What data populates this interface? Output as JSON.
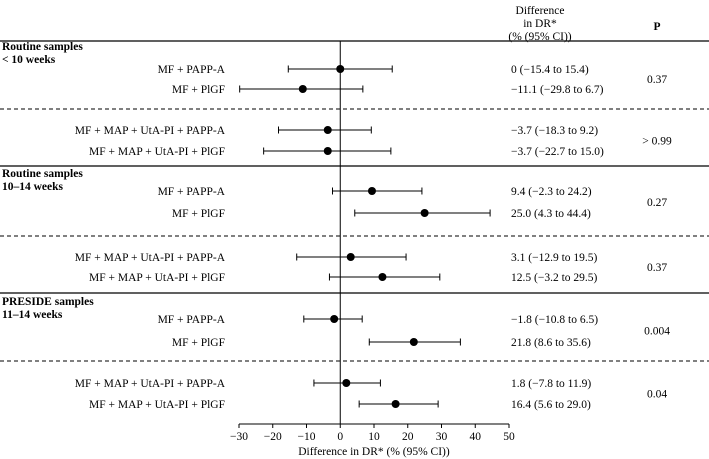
{
  "chart_data": {
    "type": "forest",
    "header": {
      "ci_column": [
        "Difference",
        "in DR*",
        "(% (95% CI))"
      ],
      "p_column": "P"
    },
    "xlabel": "Difference in DR* (% (95% CI))",
    "xlim": [
      -30,
      50
    ],
    "xticks": [
      "−30",
      "−20",
      "−10",
      "0",
      "10",
      "20",
      "30",
      "40",
      "50"
    ],
    "xtick_values": [
      -30,
      -20,
      -10,
      0,
      10,
      20,
      30,
      40,
      50
    ],
    "groups": [
      {
        "label_lines": [
          "Routine samples",
          "< 10 weeks"
        ],
        "blocks": [
          {
            "p": "0.37",
            "rows": [
              {
                "label": "MF + PAPP-A",
                "estimate": 0.0,
                "lo": -15.4,
                "hi": 15.4,
                "ci_text": "0 (−15.4 to 15.4)"
              },
              {
                "label": "MF + PlGF",
                "estimate": -11.1,
                "lo": -29.8,
                "hi": 6.7,
                "ci_text": "−11.1 (−29.8 to 6.7)"
              }
            ]
          },
          {
            "p": "> 0.99",
            "rows": [
              {
                "label": "MF + MAP + UtA-PI + PAPP-A",
                "estimate": -3.7,
                "lo": -18.3,
                "hi": 9.2,
                "ci_text": "−3.7 (−18.3 to 9.2)"
              },
              {
                "label": "MF + MAP + UtA-PI + PlGF",
                "estimate": -3.7,
                "lo": -22.7,
                "hi": 15.0,
                "ci_text": "−3.7 (−22.7 to 15.0)"
              }
            ]
          }
        ]
      },
      {
        "label_lines": [
          "Routine samples",
          "10–14 weeks"
        ],
        "blocks": [
          {
            "p": "0.27",
            "rows": [
              {
                "label": "MF + PAPP-A",
                "estimate": 9.4,
                "lo": -2.3,
                "hi": 24.2,
                "ci_text": "9.4 (−2.3 to 24.2)"
              },
              {
                "label": "MF + PlGF",
                "estimate": 25.0,
                "lo": 4.3,
                "hi": 44.4,
                "ci_text": "25.0 (4.3 to 44.4)"
              }
            ]
          },
          {
            "p": "0.37",
            "rows": [
              {
                "label": "MF + MAP + UtA-PI + PAPP-A",
                "estimate": 3.1,
                "lo": -12.9,
                "hi": 19.5,
                "ci_text": "3.1 (−12.9 to 19.5)"
              },
              {
                "label": "MF + MAP + UtA-PI + PlGF",
                "estimate": 12.5,
                "lo": -3.2,
                "hi": 29.5,
                "ci_text": "12.5 (−3.2 to 29.5)"
              }
            ]
          }
        ]
      },
      {
        "label_lines": [
          "PRESIDE samples",
          "11–14 weeks"
        ],
        "blocks": [
          {
            "p": "0.004",
            "rows": [
              {
                "label": "MF + PAPP-A",
                "estimate": -1.8,
                "lo": -10.8,
                "hi": 6.5,
                "ci_text": "−1.8 (−10.8 to 6.5)"
              },
              {
                "label": "MF + PlGF",
                "estimate": 21.8,
                "lo": 8.6,
                "hi": 35.6,
                "ci_text": "21.8 (8.6 to 35.6)"
              }
            ]
          },
          {
            "p": "0.04",
            "rows": [
              {
                "label": "MF + MAP + UtA-PI + PAPP-A",
                "estimate": 1.8,
                "lo": -7.8,
                "hi": 11.9,
                "ci_text": "1.8 (−7.8 to 11.9)"
              },
              {
                "label": "MF + MAP + UtA-PI + PlGF",
                "estimate": 16.4,
                "lo": 5.6,
                "hi": 29.0,
                "ci_text": "16.4 (5.6 to 29.0)"
              }
            ]
          }
        ]
      }
    ]
  }
}
